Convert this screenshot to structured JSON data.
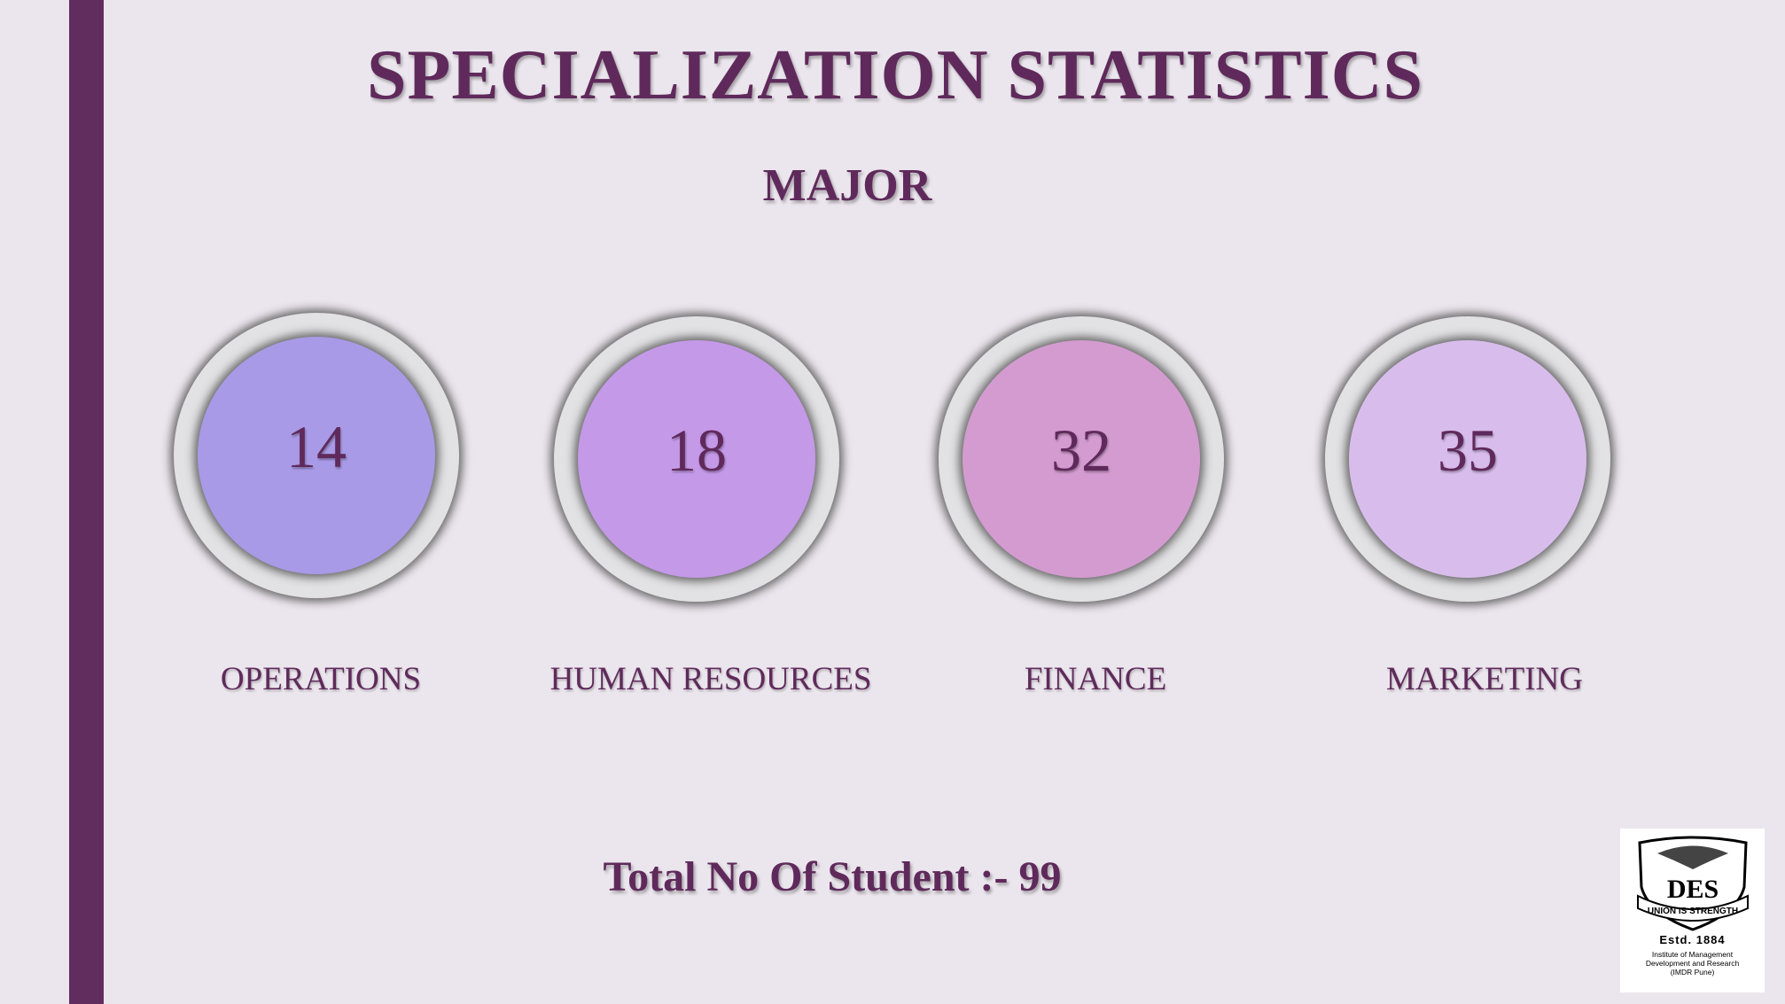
{
  "title": "SPECIALIZATION STATISTICS",
  "subtitle": "MAJOR",
  "specializations": [
    {
      "label": "OPERATIONS",
      "count": "14",
      "color": "#a89ae6"
    },
    {
      "label": "HUMAN RESOURCES",
      "count": "18",
      "color": "#c499e8"
    },
    {
      "label": "FINANCE",
      "count": "32",
      "color": "#d39bd0"
    },
    {
      "label": "MARKETING",
      "count": "35",
      "color": "#d8bdec"
    }
  ],
  "total": "Total No Of Student :- 99",
  "logo": {
    "motto": "UNION IS STRENGTH",
    "monogram": "DES",
    "estd": "Estd. 1884",
    "institute_line1": "Institute of Management",
    "institute_line2": "Development and Research",
    "institute_line3": "(IMDR Pune)"
  },
  "colors": {
    "accent": "#612d5e",
    "text": "#5f2a5b",
    "background": "#ebe6ed"
  }
}
